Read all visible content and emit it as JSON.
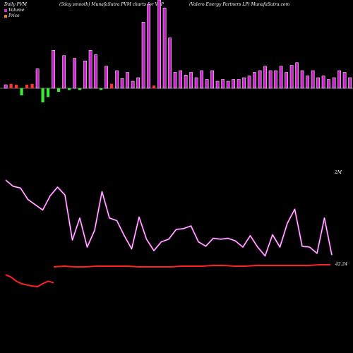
{
  "header": {
    "left": "Daily PVM",
    "center": "(5day smooth) MunafaSutra PVM charts for VLP",
    "right": "(Valero  Energy Partners LP) MunafaSutra.com"
  },
  "legend": [
    {
      "label": "Volume",
      "color": "#cc33cc"
    },
    {
      "label": "Price",
      "color": "#e08040"
    }
  ],
  "colors": {
    "up": "#cc22cc",
    "down_red": "#ff3333",
    "down_green": "#33ee33",
    "pvm_line": "#cc33cc",
    "price_line": "#ff2222",
    "baseline": "#888888"
  },
  "chart_data": {
    "type": "bar+line",
    "volume_bars": [
      {
        "v": 4,
        "c": "up"
      },
      {
        "v": 5,
        "c": "red"
      },
      {
        "v": 4,
        "c": "red"
      },
      {
        "v": -8,
        "c": "green"
      },
      {
        "v": 4,
        "c": "red"
      },
      {
        "v": 5,
        "c": "red"
      },
      {
        "v": 22,
        "c": "up"
      },
      {
        "v": -16,
        "c": "green"
      },
      {
        "v": -10,
        "c": "green"
      },
      {
        "v": 43,
        "c": "up"
      },
      {
        "v": -4,
        "c": "green"
      },
      {
        "v": 37,
        "c": "up"
      },
      {
        "v": -2,
        "c": "green"
      },
      {
        "v": 34,
        "c": "up"
      },
      {
        "v": -2,
        "c": "green"
      },
      {
        "v": 31,
        "c": "up"
      },
      {
        "v": 43,
        "c": "up"
      },
      {
        "v": 38,
        "c": "up"
      },
      {
        "v": -2,
        "c": "green"
      },
      {
        "v": 25,
        "c": "up"
      },
      {
        "v": 5,
        "c": "red"
      },
      {
        "v": 20,
        "c": "up"
      },
      {
        "v": 11,
        "c": "up"
      },
      {
        "v": 18,
        "c": "up"
      },
      {
        "v": 8,
        "c": "up"
      },
      {
        "v": 12,
        "c": "up"
      },
      {
        "v": 75,
        "c": "up"
      },
      {
        "v": 95,
        "c": "up"
      },
      {
        "v": 3,
        "c": "red"
      },
      {
        "v": 100,
        "c": "up"
      },
      {
        "v": 91,
        "c": "up"
      },
      {
        "v": 57,
        "c": "up"
      },
      {
        "v": 18,
        "c": "up"
      },
      {
        "v": 20,
        "c": "up"
      },
      {
        "v": 15,
        "c": "up"
      },
      {
        "v": 18,
        "c": "up"
      },
      {
        "v": 12,
        "c": "up"
      },
      {
        "v": 20,
        "c": "up"
      },
      {
        "v": 10,
        "c": "up"
      },
      {
        "v": 20,
        "c": "up"
      },
      {
        "v": 8,
        "c": "up"
      },
      {
        "v": 10,
        "c": "up"
      },
      {
        "v": 8,
        "c": "up"
      },
      {
        "v": 10,
        "c": "up"
      },
      {
        "v": 10,
        "c": "up"
      },
      {
        "v": 12,
        "c": "up"
      },
      {
        "v": 14,
        "c": "up"
      },
      {
        "v": 18,
        "c": "up"
      },
      {
        "v": 20,
        "c": "up"
      },
      {
        "v": 25,
        "c": "up"
      },
      {
        "v": 20,
        "c": "up"
      },
      {
        "v": 20,
        "c": "up"
      },
      {
        "v": 25,
        "c": "up"
      },
      {
        "v": 18,
        "c": "up"
      },
      {
        "v": 26,
        "c": "up"
      },
      {
        "v": 29,
        "c": "up"
      },
      {
        "v": 20,
        "c": "up"
      },
      {
        "v": 14,
        "c": "up"
      },
      {
        "v": 20,
        "c": "up"
      },
      {
        "v": 12,
        "c": "up"
      },
      {
        "v": 14,
        "c": "up"
      },
      {
        "v": 10,
        "c": "up"
      },
      {
        "v": 12,
        "c": "up"
      },
      {
        "v": 20,
        "c": "up"
      },
      {
        "v": 18,
        "c": "up"
      },
      {
        "v": 12,
        "c": "up"
      },
      {
        "v": 30,
        "c": "up"
      },
      {
        "v": 24,
        "c": "up"
      },
      {
        "v": 36,
        "c": "up"
      }
    ],
    "pvm_series": [
      88,
      81,
      79,
      66,
      60,
      54,
      70,
      80,
      71,
      20,
      45,
      12,
      31,
      75,
      45,
      42,
      25,
      10,
      46,
      21,
      8,
      18,
      21,
      32,
      33,
      36,
      18,
      13,
      22,
      21,
      22,
      19,
      12,
      25,
      12,
      2,
      26,
      12,
      39,
      55,
      13,
      12,
      5,
      45,
      3
    ],
    "pvm_annotation": "2M",
    "price_series": [
      0,
      1,
      0,
      0,
      1,
      1,
      1,
      1,
      0,
      0,
      0,
      0,
      1,
      1,
      1,
      2,
      2,
      1,
      1,
      2,
      2,
      2,
      2,
      2,
      2,
      3,
      3
    ],
    "price_pre_series": [
      38,
      45,
      58,
      66,
      70,
      73,
      75,
      65,
      58,
      63
    ],
    "price_annotation": "42.24",
    "grid": false
  }
}
